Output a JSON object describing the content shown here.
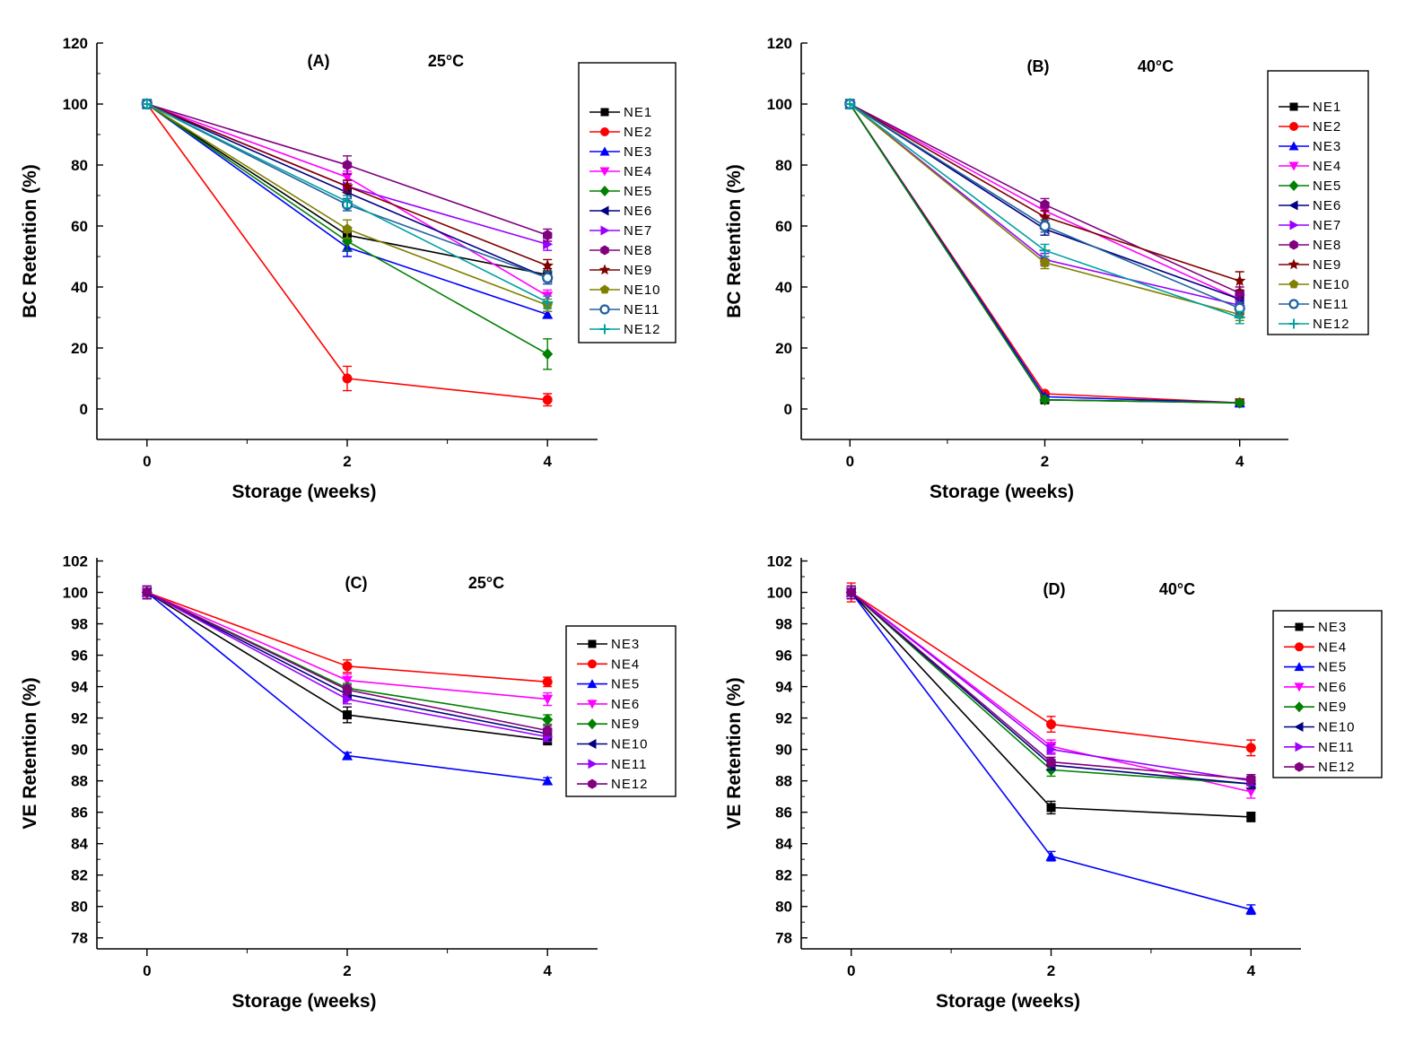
{
  "chart_data": [
    {
      "type": "line",
      "panel_label": "(A)",
      "temperature": "25°C",
      "xlabel": "Storage (weeks)",
      "ylabel": "BC Retention (%)",
      "x": [
        0,
        2,
        4
      ],
      "xticks": [
        "0",
        "2",
        "4"
      ],
      "xlim": [
        -0.5,
        4.5
      ],
      "ylim": [
        -10,
        120
      ],
      "yticks": [
        0,
        20,
        40,
        60,
        80,
        100,
        120
      ],
      "series": [
        {
          "name": "NE1",
          "color": "#000000",
          "marker": "square",
          "values": [
            100,
            57,
            44
          ],
          "errors": [
            1.5,
            2,
            2
          ]
        },
        {
          "name": "NE2",
          "color": "#ff0000",
          "marker": "circle",
          "values": [
            100,
            10,
            3
          ],
          "errors": [
            1.5,
            4,
            2
          ]
        },
        {
          "name": "NE3",
          "color": "#0000ff",
          "marker": "triangle-up",
          "values": [
            100,
            53,
            31
          ],
          "errors": [
            1.5,
            3,
            1
          ]
        },
        {
          "name": "NE4",
          "color": "#ff00ff",
          "marker": "triangle-down",
          "values": [
            100,
            76,
            37
          ],
          "errors": [
            1.5,
            2,
            2
          ]
        },
        {
          "name": "NE5",
          "color": "#008000",
          "marker": "diamond",
          "values": [
            100,
            55,
            18
          ],
          "errors": [
            1.5,
            3,
            5
          ]
        },
        {
          "name": "NE6",
          "color": "#000080",
          "marker": "triangle-left",
          "values": [
            100,
            71,
            43
          ],
          "errors": [
            1.5,
            2,
            2
          ]
        },
        {
          "name": "NE7",
          "color": "#9900ff",
          "marker": "triangle-right",
          "values": [
            100,
            73,
            54
          ],
          "errors": [
            1.5,
            2,
            2
          ]
        },
        {
          "name": "NE8",
          "color": "#800080",
          "marker": "hexagon",
          "values": [
            100,
            80,
            57
          ],
          "errors": [
            1.5,
            3,
            2
          ]
        },
        {
          "name": "NE9",
          "color": "#800000",
          "marker": "star",
          "values": [
            100,
            73,
            47
          ],
          "errors": [
            1.5,
            2,
            2
          ]
        },
        {
          "name": "NE10",
          "color": "#808000",
          "marker": "pentagon",
          "values": [
            100,
            59,
            34
          ],
          "errors": [
            1.5,
            3,
            2
          ]
        },
        {
          "name": "NE11",
          "color": "#2060a0",
          "marker": "circle-open",
          "values": [
            100,
            67,
            43
          ],
          "errors": [
            1.5,
            2,
            2
          ]
        },
        {
          "name": "NE12",
          "color": "#00a0a0",
          "marker": "plus",
          "values": [
            100,
            68,
            35
          ],
          "errors": [
            1.5,
            2,
            2
          ]
        }
      ]
    },
    {
      "type": "line",
      "panel_label": "(B)",
      "temperature": "40°C",
      "xlabel": "Storage (weeks)",
      "ylabel": "BC Retention (%)",
      "x": [
        0,
        2,
        4
      ],
      "xticks": [
        "0",
        "2",
        "4"
      ],
      "xlim": [
        -0.5,
        4.5
      ],
      "ylim": [
        -10,
        120
      ],
      "yticks": [
        0,
        20,
        40,
        60,
        80,
        100,
        120
      ],
      "series": [
        {
          "name": "NE1",
          "color": "#000000",
          "marker": "square",
          "values": [
            100,
            3,
            2
          ],
          "errors": [
            1.5,
            0.5,
            0.5
          ]
        },
        {
          "name": "NE2",
          "color": "#ff0000",
          "marker": "circle",
          "values": [
            100,
            5,
            2
          ],
          "errors": [
            1.5,
            0.5,
            0.5
          ]
        },
        {
          "name": "NE3",
          "color": "#0000ff",
          "marker": "triangle-up",
          "values": [
            100,
            4,
            2
          ],
          "errors": [
            1.5,
            0.5,
            0.5
          ]
        },
        {
          "name": "NE4",
          "color": "#ff00ff",
          "marker": "triangle-down",
          "values": [
            100,
            65,
            36
          ],
          "errors": [
            1.5,
            2,
            2
          ]
        },
        {
          "name": "NE5",
          "color": "#008000",
          "marker": "diamond",
          "values": [
            100,
            3,
            2
          ],
          "errors": [
            1.5,
            0.5,
            0.5
          ]
        },
        {
          "name": "NE6",
          "color": "#000080",
          "marker": "triangle-left",
          "values": [
            100,
            59,
            36
          ],
          "errors": [
            1.5,
            2,
            2
          ]
        },
        {
          "name": "NE7",
          "color": "#9900ff",
          "marker": "triangle-right",
          "values": [
            100,
            49,
            34
          ],
          "errors": [
            1.5,
            2,
            2
          ]
        },
        {
          "name": "NE8",
          "color": "#800080",
          "marker": "hexagon",
          "values": [
            100,
            67,
            38
          ],
          "errors": [
            1.5,
            2,
            2
          ]
        },
        {
          "name": "NE9",
          "color": "#800000",
          "marker": "star",
          "values": [
            100,
            63,
            42
          ],
          "errors": [
            1.5,
            2,
            3
          ]
        },
        {
          "name": "NE10",
          "color": "#808000",
          "marker": "pentagon",
          "values": [
            100,
            48,
            31
          ],
          "errors": [
            1.5,
            2,
            2
          ]
        },
        {
          "name": "NE11",
          "color": "#2060a0",
          "marker": "circle-open",
          "values": [
            100,
            60,
            33
          ],
          "errors": [
            1.5,
            2,
            2
          ]
        },
        {
          "name": "NE12",
          "color": "#00a0a0",
          "marker": "plus",
          "values": [
            100,
            52,
            30
          ],
          "errors": [
            1.5,
            2,
            2
          ]
        }
      ]
    },
    {
      "type": "line",
      "panel_label": "(C)",
      "temperature": "25°C",
      "xlabel": "Storage (weeks)",
      "ylabel": "VE Retention (%)",
      "x": [
        0,
        2,
        4
      ],
      "xticks": [
        "0",
        "2",
        "4"
      ],
      "xlim": [
        -0.5,
        4.5
      ],
      "ylim": [
        77.3,
        102.2
      ],
      "yticks": [
        78,
        80,
        82,
        84,
        86,
        88,
        90,
        92,
        94,
        96,
        98,
        100,
        102
      ],
      "series": [
        {
          "name": "NE3",
          "color": "#000000",
          "marker": "square",
          "values": [
            100,
            92.2,
            90.6
          ],
          "errors": [
            0.4,
            0.5,
            0.3
          ]
        },
        {
          "name": "NE4",
          "color": "#ff0000",
          "marker": "circle",
          "values": [
            100,
            95.3,
            94.3
          ],
          "errors": [
            0.4,
            0.4,
            0.3
          ]
        },
        {
          "name": "NE5",
          "color": "#0000ff",
          "marker": "triangle-up",
          "values": [
            100,
            89.6,
            88.0
          ],
          "errors": [
            0.4,
            0.2,
            0.2
          ]
        },
        {
          "name": "NE6",
          "color": "#ff00ff",
          "marker": "triangle-down",
          "values": [
            100,
            94.4,
            93.2
          ],
          "errors": [
            0.4,
            0.4,
            0.4
          ]
        },
        {
          "name": "NE9",
          "color": "#008000",
          "marker": "diamond",
          "values": [
            100,
            93.9,
            91.9
          ],
          "errors": [
            0.4,
            0.3,
            0.3
          ]
        },
        {
          "name": "NE10",
          "color": "#000080",
          "marker": "triangle-left",
          "values": [
            100,
            93.5,
            91.0
          ],
          "errors": [
            0.4,
            0.3,
            0.3
          ]
        },
        {
          "name": "NE11",
          "color": "#9900ff",
          "marker": "triangle-right",
          "values": [
            100,
            93.2,
            90.8
          ],
          "errors": [
            0.4,
            0.3,
            0.3
          ]
        },
        {
          "name": "NE12",
          "color": "#800080",
          "marker": "hexagon",
          "values": [
            100,
            93.8,
            91.2
          ],
          "errors": [
            0.4,
            0.3,
            0.3
          ]
        }
      ]
    },
    {
      "type": "line",
      "panel_label": "(D)",
      "temperature": "40°C",
      "xlabel": "Storage (weeks)",
      "ylabel": "VE Retention (%)",
      "x": [
        0,
        2,
        4
      ],
      "xticks": [
        "0",
        "2",
        "4"
      ],
      "xlim": [
        -0.5,
        4.5
      ],
      "ylim": [
        77.3,
        102.2
      ],
      "yticks": [
        78,
        80,
        82,
        84,
        86,
        88,
        90,
        92,
        94,
        96,
        98,
        100,
        102
      ],
      "series": [
        {
          "name": "NE3",
          "color": "#000000",
          "marker": "square",
          "values": [
            100,
            86.3,
            85.7
          ],
          "errors": [
            0.4,
            0.4,
            0.3
          ]
        },
        {
          "name": "NE4",
          "color": "#ff0000",
          "marker": "circle",
          "values": [
            100,
            91.6,
            90.1
          ],
          "errors": [
            0.6,
            0.5,
            0.5
          ]
        },
        {
          "name": "NE5",
          "color": "#0000ff",
          "marker": "triangle-up",
          "values": [
            100,
            83.2,
            79.8
          ],
          "errors": [
            0.4,
            0.3,
            0.3
          ]
        },
        {
          "name": "NE6",
          "color": "#ff00ff",
          "marker": "triangle-down",
          "values": [
            100,
            90.2,
            87.3
          ],
          "errors": [
            0.4,
            0.4,
            0.4
          ]
        },
        {
          "name": "NE9",
          "color": "#008000",
          "marker": "diamond",
          "values": [
            100,
            88.7,
            87.8
          ],
          "errors": [
            0.4,
            0.4,
            0.3
          ]
        },
        {
          "name": "NE10",
          "color": "#000080",
          "marker": "triangle-left",
          "values": [
            100,
            89.0,
            87.8
          ],
          "errors": [
            0.4,
            0.3,
            0.3
          ]
        },
        {
          "name": "NE11",
          "color": "#9900ff",
          "marker": "triangle-right",
          "values": [
            100,
            90.0,
            88.0
          ],
          "errors": [
            0.4,
            0.3,
            0.3
          ]
        },
        {
          "name": "NE12",
          "color": "#800080",
          "marker": "hexagon",
          "values": [
            100,
            89.2,
            88.1
          ],
          "errors": [
            0.4,
            0.3,
            0.3
          ]
        }
      ]
    }
  ]
}
